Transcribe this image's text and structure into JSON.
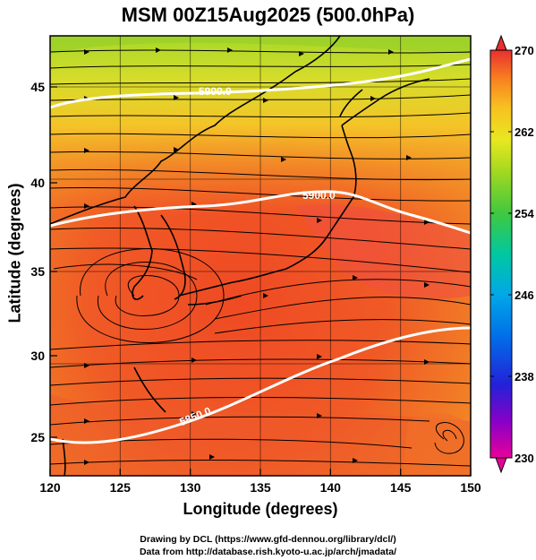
{
  "title": "MSM 00Z15Aug2025 (500.0hPa)",
  "xaxis": {
    "label": "Longitude (degrees)",
    "ticks": [
      "120",
      "125",
      "130",
      "135",
      "140",
      "145",
      "150"
    ],
    "range": [
      120,
      150
    ]
  },
  "yaxis": {
    "label": "Latitude  (degrees)",
    "ticks": [
      "25",
      "30",
      "35",
      "40",
      "45"
    ],
    "range": [
      22.5,
      47.5
    ]
  },
  "contours": [
    {
      "label": "5900.0",
      "color": "#ffffff"
    },
    {
      "label": "5900.0",
      "color": "#ffffff"
    },
    {
      "label": "5850.0",
      "color": "#ffffff"
    }
  ],
  "colorbar": {
    "ticks": [
      "270",
      "262",
      "254",
      "246",
      "238",
      "230"
    ],
    "range": [
      230,
      270
    ],
    "colors": [
      "#e8009a",
      "#8800c8",
      "#2222d8",
      "#00a0e8",
      "#00c8a0",
      "#40c840",
      "#a0d820",
      "#e8e820",
      "#f8c020",
      "#f89020",
      "#f05020",
      "#e83030"
    ]
  },
  "credits": [
    "Drawing by DCL (https://www.gfd-dennou.org/library/dcl/)",
    "Data from http://database.rish.kyoto-u.ac.jp/arch/jmadata/"
  ]
}
